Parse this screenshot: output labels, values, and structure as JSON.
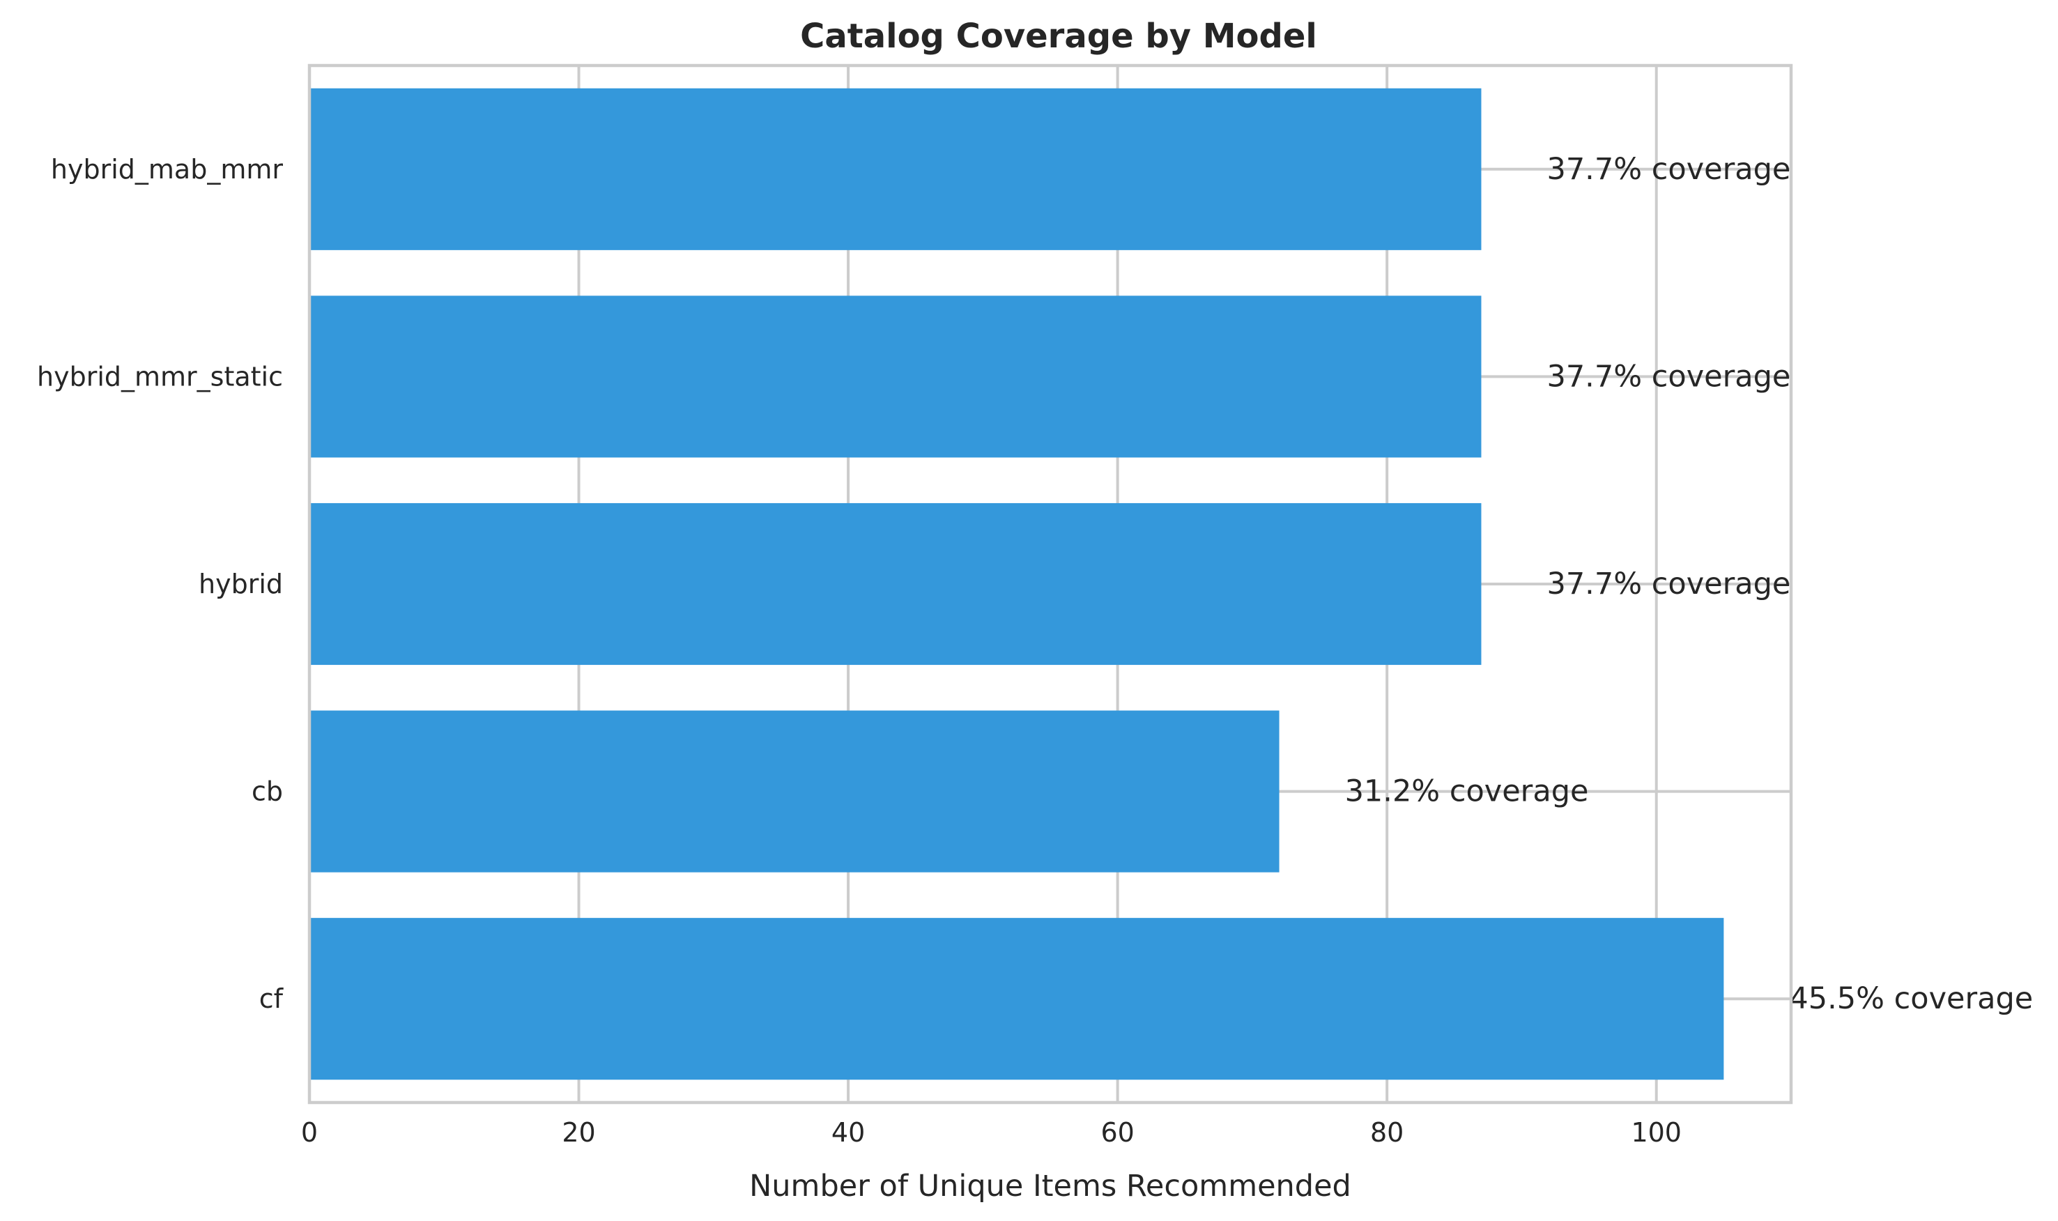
{
  "chart_data": {
    "type": "bar",
    "orientation": "horizontal",
    "title": "Catalog Coverage by Model",
    "xlabel": "Number of Unique Items Recommended",
    "ylabel": "",
    "categories": [
      "cf",
      "cb",
      "hybrid",
      "hybrid_mmr_static",
      "hybrid_mab_mmr"
    ],
    "values": [
      105,
      72,
      87,
      87,
      87
    ],
    "data_labels": [
      "45.5% coverage",
      "31.2% coverage",
      "37.7% coverage",
      "37.7% coverage",
      "37.7% coverage"
    ],
    "xlim": [
      0,
      110
    ],
    "xticks": [
      0,
      20,
      40,
      60,
      80,
      100
    ],
    "grid": true,
    "bar_color": "#3498db",
    "legend": "none"
  }
}
